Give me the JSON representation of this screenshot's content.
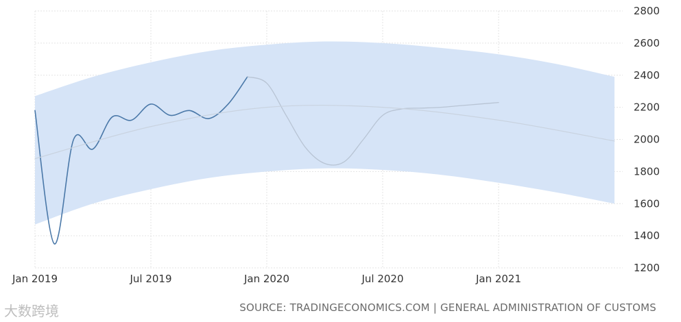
{
  "chart_data": {
    "type": "line",
    "title": "",
    "xlabel": "",
    "ylabel": "",
    "x_ticks": [
      "Jan 2019",
      "Jul 2019",
      "Jan 2020",
      "Jul 2020",
      "Jan 2021"
    ],
    "y_ticks": [
      1200,
      1400,
      1600,
      1800,
      2000,
      2200,
      2400,
      2600,
      2800
    ],
    "ylim": [
      1200,
      2800
    ],
    "xlim": [
      "2019-01",
      "2021-07"
    ],
    "y_axis_position": "right",
    "grid": true,
    "series": [
      {
        "role": "actual",
        "color": "#4a78a8",
        "x": [
          "2019-01",
          "2019-02",
          "2019-03",
          "2019-04",
          "2019-05",
          "2019-06",
          "2019-07",
          "2019-08",
          "2019-09",
          "2019-10",
          "2019-11",
          "2019-12"
        ],
        "values": [
          2180,
          1350,
          2000,
          1940,
          2140,
          2120,
          2220,
          2150,
          2180,
          2130,
          2220,
          2390
        ]
      },
      {
        "role": "forecast",
        "color": "#b8c4d4",
        "x": [
          "2019-12",
          "2020-01",
          "2020-02",
          "2020-03",
          "2020-04",
          "2020-05",
          "2020-06",
          "2020-07",
          "2020-08",
          "2020-09",
          "2020-10",
          "2020-11",
          "2020-12",
          "2021-01"
        ],
        "values": [
          2390,
          2350,
          2150,
          1950,
          1850,
          1860,
          2000,
          2150,
          2190,
          2195,
          2200,
          2210,
          2220,
          2230
        ]
      },
      {
        "role": "trend",
        "color": "#c9d3e0",
        "x": [
          "2019-01",
          "2019-07",
          "2020-01",
          "2020-07",
          "2021-01",
          "2021-07"
        ],
        "values": [
          1880,
          2080,
          2200,
          2200,
          2120,
          1990
        ]
      }
    ],
    "band": {
      "color": "#d6e4f7",
      "x": [
        "2019-01",
        "2019-04",
        "2019-07",
        "2019-10",
        "2020-01",
        "2020-04",
        "2020-07",
        "2020-10",
        "2021-01",
        "2021-04",
        "2021-07"
      ],
      "upper": [
        2270,
        2390,
        2480,
        2550,
        2590,
        2610,
        2600,
        2570,
        2530,
        2470,
        2390
      ],
      "lower": [
        1470,
        1600,
        1690,
        1760,
        1800,
        1820,
        1810,
        1780,
        1730,
        1670,
        1600
      ]
    }
  },
  "source": "SOURCE: TRADINGECONOMICS.COM | GENERAL ADMINISTRATION OF CUSTOMS",
  "watermark": "大数跨境"
}
